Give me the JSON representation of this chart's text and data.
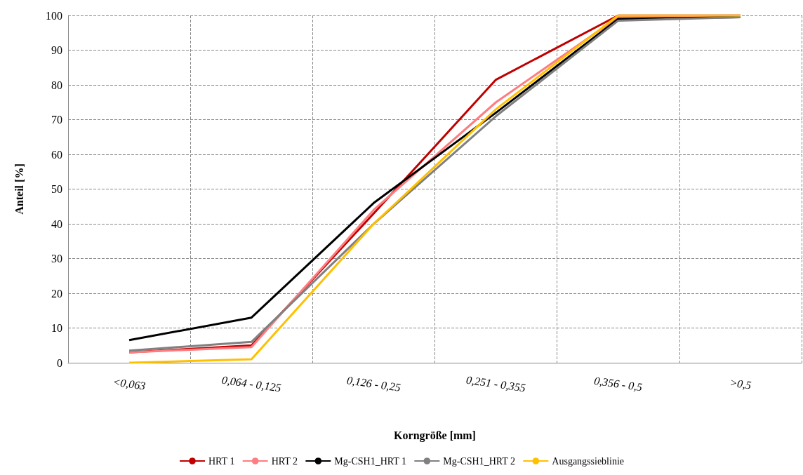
{
  "chart_data": {
    "type": "line",
    "xlabel": "Korngröße [mm]",
    "ylabel": "Anteil [%]",
    "categories": [
      "<0,063",
      "0,064 - 0,125",
      "0,126 - 0,25",
      "0,251 - 0,355",
      "0,356 - 0,5",
      ">0,5"
    ],
    "series": [
      {
        "name": "HRT 1",
        "color": "#c00000",
        "values": [
          3,
          5,
          43,
          81.5,
          100,
          100
        ]
      },
      {
        "name": "HRT 2",
        "color": "#ff7c80",
        "values": [
          3,
          4.5,
          44,
          75,
          99.5,
          100
        ]
      },
      {
        "name": "Mg-CSH1_HRT 1",
        "color": "#000000",
        "values": [
          6.5,
          13,
          46,
          72,
          99,
          99.5
        ]
      },
      {
        "name": "Mg-CSH1_HRT 2",
        "color": "#808080",
        "values": [
          3.5,
          6,
          40,
          71,
          98.5,
          99.5
        ]
      },
      {
        "name": "Ausgangssieblinie",
        "color": "#ffc000",
        "values": [
          0,
          1,
          40,
          73,
          100,
          100
        ]
      }
    ],
    "ylim": [
      0,
      100
    ],
    "yticks": [
      0,
      10,
      20,
      30,
      40,
      50,
      60,
      70,
      80,
      90,
      100
    ],
    "grid": true,
    "legend": "bottom",
    "marker": "none",
    "line_style": "solid"
  }
}
